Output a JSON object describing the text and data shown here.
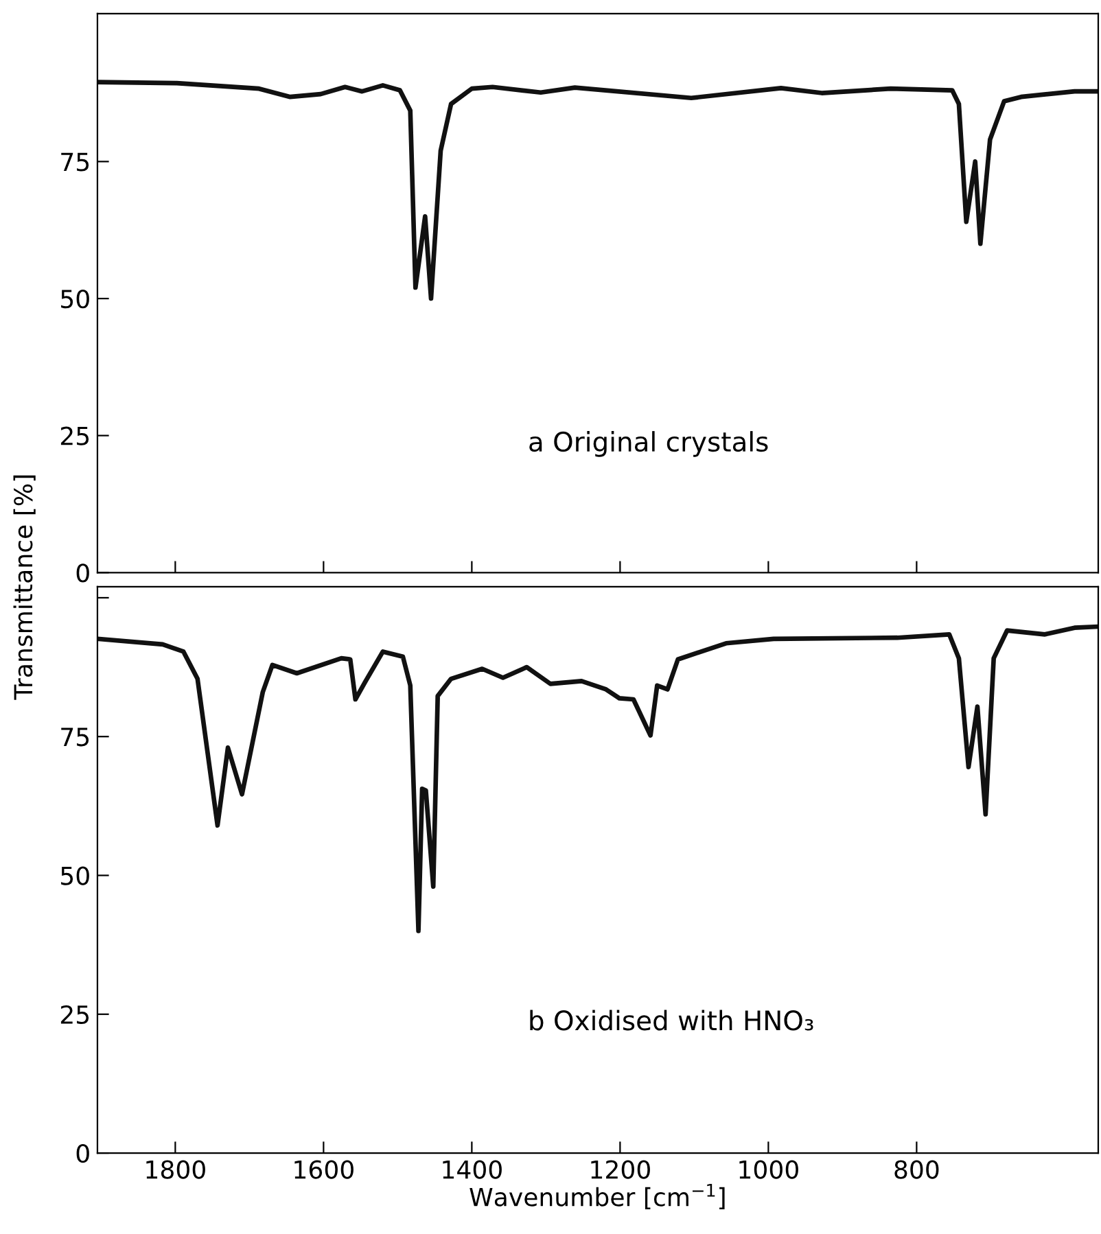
{
  "chart_data": [
    {
      "type": "line",
      "annotations": [
        "a Original crystals"
      ],
      "xlim": [
        1905,
        555
      ],
      "xticks": [
        {
          "value": 1800,
          "label": null
        },
        {
          "value": 1600,
          "label": null
        },
        {
          "value": 1400,
          "label": null
        },
        {
          "value": 1200,
          "label": null
        },
        {
          "value": 1000,
          "label": null
        },
        {
          "value": 800,
          "label": null
        }
      ],
      "ylim": [
        0,
        102
      ],
      "yticks": [
        0,
        25,
        50,
        75
      ],
      "tick_labels": "y",
      "grid": false,
      "line_style": "solid",
      "marker": "none",
      "series": [
        {
          "color": "#111111",
          "x": [
            1905,
            1798,
            1687,
            1645,
            1604,
            1571,
            1548,
            1520,
            1497,
            1483,
            1476,
            1463,
            1455,
            1442,
            1428,
            1400,
            1372,
            1307,
            1261,
            1104,
            983,
            928,
            835,
            752,
            743,
            733,
            721,
            714,
            701,
            682,
            659,
            587,
            556
          ],
          "values": [
            89.5,
            89.3,
            88.3,
            86.8,
            87.3,
            88.6,
            87.8,
            88.9,
            88,
            84.3,
            52,
            65,
            50,
            77,
            85.5,
            88.3,
            88.6,
            87.6,
            88.5,
            86.6,
            88.4,
            87.5,
            88.3,
            88,
            85.5,
            64,
            75,
            60,
            79,
            86,
            86.8,
            87.8,
            87.8
          ]
        }
      ]
    },
    {
      "type": "line",
      "xlabel": "Wavenumber [cm$^{−1}$]",
      "ylabel": "Transmittance [%]",
      "annotations": [
        "b Oxidised with HNO₃"
      ],
      "xlim": [
        1905,
        555
      ],
      "xticks": [
        1800,
        1600,
        1400,
        1200,
        1000,
        800
      ],
      "ylim": [
        0,
        102
      ],
      "yticks": [
        0,
        25,
        50,
        75,
        {
          "value": 100,
          "label": null
        }
      ],
      "grid": false,
      "line_style": "solid",
      "marker": "none",
      "series": [
        {
          "color": "#111111",
          "x": [
            1905,
            1817,
            1789,
            1770,
            1743,
            1729,
            1710,
            1682,
            1669,
            1636,
            1576,
            1564,
            1557,
            1544,
            1520,
            1493,
            1483,
            1472,
            1467,
            1462,
            1452,
            1446,
            1428,
            1386,
            1358,
            1326,
            1294,
            1252,
            1219,
            1201,
            1182,
            1159,
            1150,
            1136,
            1122,
            1057,
            993,
            826,
            756,
            743,
            730,
            718,
            707,
            696,
            678,
            627,
            587,
            556
          ],
          "values": [
            92.6,
            91.6,
            90.3,
            85.4,
            59,
            73,
            64.6,
            83,
            87.9,
            86.4,
            89.1,
            88.9,
            81.7,
            84.8,
            90.3,
            89.4,
            84.2,
            40,
            65.6,
            65.3,
            48,
            82.3,
            85.4,
            87.2,
            85.6,
            87.5,
            84.5,
            85,
            83.5,
            81.9,
            81.7,
            75.2,
            84.2,
            83.5,
            88.9,
            91.8,
            92.6,
            92.8,
            93.4,
            89.1,
            69.5,
            80.4,
            61,
            89.1,
            94.1,
            93.4,
            94.6,
            94.8
          ]
        }
      ]
    }
  ]
}
